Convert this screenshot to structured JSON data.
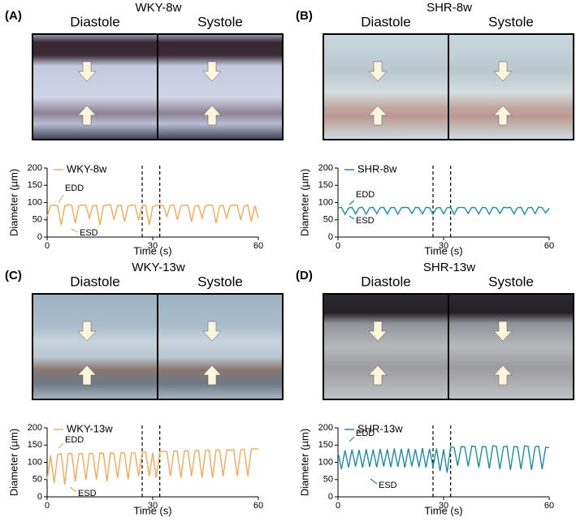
{
  "chart_data": [
    {
      "type": "line",
      "panel_label": "(A)",
      "title": "WKY-8w",
      "image_labels": [
        "Diastole",
        "Systole"
      ],
      "xlabel": "Time (s)",
      "ylabel": "Diameter (µm)",
      "annotations": [
        "EDD",
        "ESD"
      ],
      "x": [
        0,
        1,
        2,
        3,
        4,
        5,
        6,
        7,
        8,
        9,
        10,
        11,
        12,
        13,
        14,
        15,
        16,
        17,
        18,
        19,
        20,
        21,
        22,
        23,
        24,
        25,
        26,
        27,
        28,
        29,
        30,
        31,
        32,
        33,
        34,
        35,
        36,
        37,
        38,
        39,
        40,
        41,
        42,
        43,
        44,
        45,
        46,
        47,
        48,
        49,
        50,
        51,
        52,
        53,
        54,
        55,
        56,
        57,
        58,
        59,
        60
      ],
      "series": [
        {
          "name": "WKY-8w",
          "color": "#f7a857",
          "values": [
            60,
            92,
            93,
            90,
            35,
            90,
            94,
            92,
            40,
            90,
            93,
            92,
            55,
            91,
            92,
            35,
            90,
            93,
            94,
            50,
            91,
            92,
            45,
            90,
            93,
            92,
            50,
            91,
            92,
            35,
            88,
            92,
            93,
            91,
            60,
            92,
            93,
            50,
            91,
            92,
            93,
            45,
            90,
            92,
            55,
            91,
            93,
            92,
            40,
            90,
            92,
            55,
            91,
            93,
            92,
            50,
            90,
            93,
            45,
            91,
            55
          ]
        }
      ],
      "xlim": [
        0,
        60
      ],
      "ylim": [
        0,
        200
      ],
      "xticks": [
        0,
        30,
        60
      ],
      "yticks": [
        0,
        50,
        100,
        150,
        200
      ],
      "vlines": [
        27,
        32
      ]
    },
    {
      "type": "line",
      "panel_label": "(B)",
      "title": "SHR-8w",
      "image_labels": [
        "Diastole",
        "Systole"
      ],
      "xlabel": "Time (s)",
      "ylabel": "Diameter (µm)",
      "annotations": [
        "EDD",
        "ESD"
      ],
      "x": [
        0,
        1,
        2,
        3,
        4,
        5,
        6,
        7,
        8,
        9,
        10,
        11,
        12,
        13,
        14,
        15,
        16,
        17,
        18,
        19,
        20,
        21,
        22,
        23,
        24,
        25,
        26,
        27,
        28,
        29,
        30,
        31,
        32,
        33,
        34,
        35,
        36,
        37,
        38,
        39,
        40,
        41,
        42,
        43,
        44,
        45,
        46,
        47,
        48,
        49,
        50,
        51,
        52,
        53,
        54,
        55,
        56,
        57,
        58,
        59,
        60
      ],
      "series": [
        {
          "name": "SHR-8w",
          "color": "#1b8cab",
          "values": [
            85,
            86,
            66,
            84,
            86,
            67,
            85,
            86,
            66,
            85,
            86,
            68,
            85,
            86,
            67,
            85,
            86,
            66,
            85,
            86,
            85,
            68,
            86,
            85,
            67,
            86,
            85,
            66,
            84,
            86,
            67,
            85,
            86,
            66,
            85,
            86,
            85,
            68,
            86,
            85,
            67,
            86,
            85,
            66,
            86,
            85,
            68,
            86,
            85,
            86,
            67,
            85,
            86,
            66,
            85,
            86,
            68,
            87,
            85,
            70,
            84
          ]
        }
      ],
      "xlim": [
        0,
        60
      ],
      "ylim": [
        0,
        200
      ],
      "xticks": [
        0,
        30,
        60
      ],
      "yticks": [
        0,
        50,
        100,
        150,
        200
      ],
      "vlines": [
        27,
        32
      ]
    },
    {
      "type": "line",
      "panel_label": "(C)",
      "title": "WKY-13w",
      "image_labels": [
        "Diastole",
        "Systole"
      ],
      "xlabel": "Time (s)",
      "ylabel": "Diameter (µm)",
      "annotations": [
        "EDD",
        "ESD"
      ],
      "x": [
        0,
        1,
        2,
        3,
        4,
        5,
        6,
        7,
        8,
        9,
        10,
        11,
        12,
        13,
        14,
        15,
        16,
        17,
        18,
        19,
        20,
        21,
        22,
        23,
        24,
        25,
        26,
        27,
        28,
        29,
        30,
        31,
        32,
        33,
        34,
        35,
        36,
        37,
        38,
        39,
        40,
        41,
        42,
        43,
        44,
        45,
        46,
        47,
        48,
        49,
        50,
        51,
        52,
        53,
        54,
        55,
        56,
        57,
        58,
        59,
        60
      ],
      "series": [
        {
          "name": "WKY-13w",
          "color": "#f7a857",
          "values": [
            50,
            120,
            40,
            122,
            125,
            35,
            125,
            126,
            45,
            124,
            125,
            50,
            126,
            125,
            50,
            127,
            126,
            45,
            127,
            126,
            55,
            128,
            127,
            50,
            128,
            127,
            60,
            128,
            130,
            60,
            128,
            55,
            130,
            132,
            131,
            60,
            133,
            132,
            55,
            133,
            134,
            60,
            133,
            135,
            55,
            134,
            135,
            55,
            136,
            135,
            60,
            136,
            135,
            137,
            60,
            136,
            138,
            60,
            138,
            140,
            138
          ]
        }
      ],
      "xlim": [
        0,
        60
      ],
      "ylim": [
        0,
        200
      ],
      "xticks": [
        0,
        30,
        60
      ],
      "yticks": [
        0,
        50,
        100,
        150,
        200
      ],
      "vlines": [
        27,
        32
      ]
    },
    {
      "type": "line",
      "panel_label": "(D)",
      "title": "SHR-13w",
      "image_labels": [
        "Diastole",
        "Systole"
      ],
      "xlabel": "Time (s)",
      "ylabel": "Diameter (µm)",
      "annotations": [
        "EDD",
        "ESD"
      ],
      "x": [
        0,
        1,
        2,
        3,
        4,
        5,
        6,
        7,
        8,
        9,
        10,
        11,
        12,
        13,
        14,
        15,
        16,
        17,
        18,
        19,
        20,
        21,
        22,
        23,
        24,
        25,
        26,
        27,
        28,
        29,
        30,
        31,
        32,
        33,
        34,
        35,
        36,
        37,
        38,
        39,
        40,
        41,
        42,
        43,
        44,
        45,
        46,
        47,
        48,
        49,
        50,
        51,
        52,
        53,
        54,
        55,
        56,
        57,
        58,
        59,
        60
      ],
      "series": [
        {
          "name": "SHR-13w",
          "color": "#1b8cab",
          "values": [
            130,
            80,
            135,
            85,
            137,
            88,
            136,
            85,
            138,
            87,
            137,
            86,
            139,
            88,
            138,
            86,
            140,
            87,
            139,
            85,
            140,
            88,
            138,
            86,
            141,
            85,
            139,
            87,
            140,
            75,
            138,
            70,
            145,
            143,
            90,
            146,
            145,
            88,
            147,
            146,
            85,
            146,
            145,
            82,
            148,
            146,
            80,
            145,
            147,
            78,
            146,
            145,
            80,
            148,
            146,
            78,
            145,
            147,
            80,
            144,
            142
          ]
        }
      ],
      "xlim": [
        0,
        60
      ],
      "ylim": [
        0,
        200
      ],
      "xticks": [
        0,
        30,
        60
      ],
      "yticks": [
        0,
        50,
        100,
        150,
        200
      ],
      "vlines": [
        27,
        32
      ]
    }
  ]
}
